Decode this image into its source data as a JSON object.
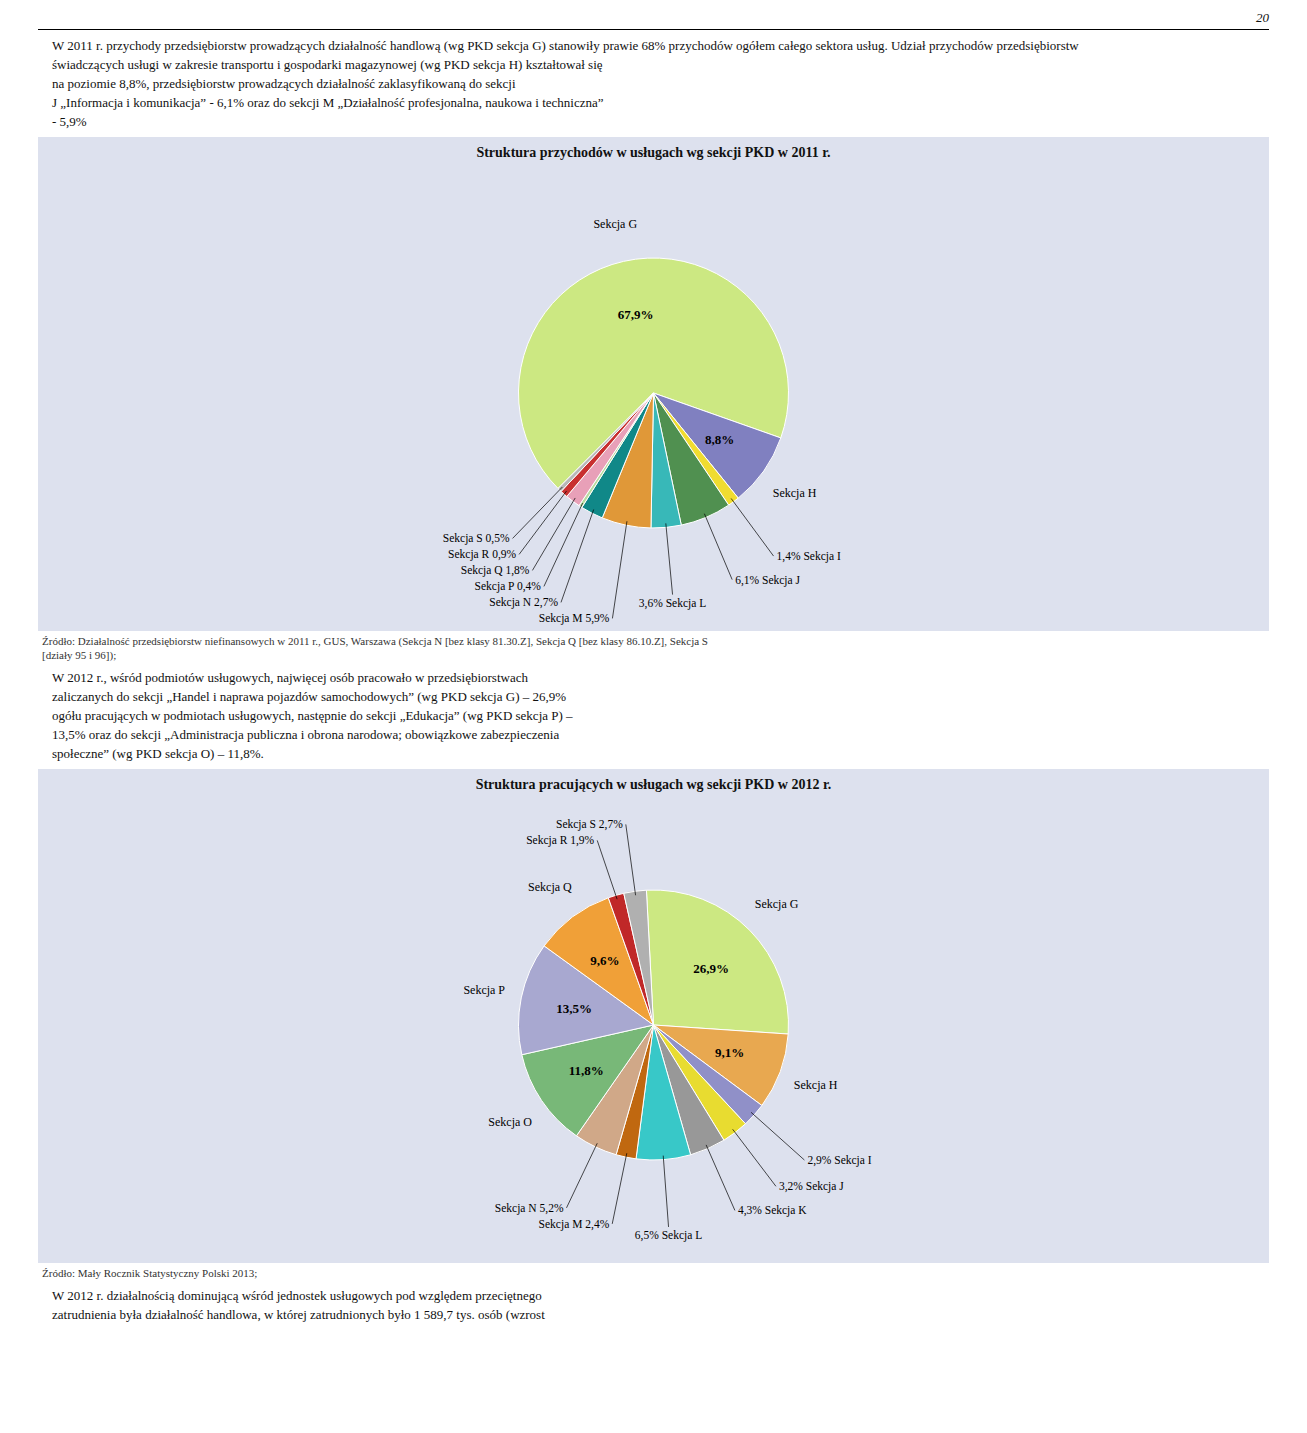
{
  "page_number": "20",
  "paragraphs": [
    [
      "W 2011 r. przychody przedsiębiorstw prowadzących działalność handlową (wg PKD sekcja G) stanowiły prawie 68% przychodów ogółem całego sektora usług. Udział przychodów przedsiębiorstw",
      "świadczących usługi w zakresie transportu i gospodarki magazynowej (wg PKD sekcja H) kształtował się",
      "na   poziomie   8,8%,   przedsiębiorstw   prowadzących   działalność   zaklasyfikowaną do sekcji",
      "J „Informacja i komunikacja” - 6,1% oraz do sekcji M „Działalność profesjonalna, naukowa i techniczna”",
      "- 5,9%"
    ],
    [
      "     W 2012 r., wśród podmiotów usługowych, najwięcej osób pracowało w przedsiębiorstwach",
      "zaliczanych do sekcji „Handel i naprawa pojazdów samochodowych” (wg PKD sekcja G) – 26,9%",
      "ogółu pracujących w podmiotach usługowych, następnie do sekcji „Edukacja” (wg PKD sekcja P) –",
      "13,5% oraz do sekcji „Administracja publiczna i obrona narodowa; obowiązkowe zabezpieczenia",
      "społeczne” (wg PKD sekcja O) – 11,8%."
    ],
    [
      "     W 2012 r. działalnością dominującą wśród jednostek usługowych pod względem przeciętnego",
      "zatrudnienia była działalność handlowa, w której zatrudnionych było 1 589,7 tys. osób (wzrost"
    ]
  ],
  "chart_data": [
    {
      "type": "pie",
      "title": "Struktura przychodów w usługach wg sekcji PKD w 2011 r.",
      "categories": [
        "Sekcja G",
        "Sekcja H",
        "Sekcja I",
        "Sekcja J",
        "Sekcja L",
        "Sekcja M",
        "Sekcja N",
        "Sekcja P",
        "Sekcja Q",
        "Sekcja R",
        "Sekcja S"
      ],
      "values": [
        67.9,
        8.8,
        1.4,
        6.1,
        3.6,
        5.9,
        2.7,
        0.4,
        1.8,
        0.9,
        0.5
      ],
      "value_labels": [
        "67,9%",
        "8,8%",
        "1,4%",
        "6,1%",
        "3,6%",
        "5,9%",
        "2,7%",
        "0,4%",
        "1,8%",
        "0,9%",
        "0,5%"
      ],
      "colors": [
        "#cce882",
        "#8080c0",
        "#f0dc30",
        "#509050",
        "#38b8b8",
        "#e09838",
        "#108888",
        "#b8dca0",
        "#e8a0b8",
        "#c83030",
        "#b8b8b8"
      ],
      "data_labels": true,
      "source": [
        "Źródło: Działalność przedsiębiorstw niefinansowych w 2011 r., GUS, Warszawa (Sekcja N [bez klasy 81.30.Z], Sekcja Q [bez klasy 86.10.Z], Sekcja S",
        "[działy 95 i 96]);"
      ]
    },
    {
      "type": "pie",
      "title": "Struktura pracujących w usługach wg sekcji PKD w 2012 r.",
      "categories": [
        "Sekcja G",
        "Sekcja H",
        "Sekcja I",
        "Sekcja J",
        "Sekcja K",
        "Sekcja L",
        "Sekcja M",
        "Sekcja N",
        "Sekcja O",
        "Sekcja P",
        "Sekcja Q",
        "Sekcja R",
        "Sekcja S"
      ],
      "values": [
        26.9,
        9.1,
        2.9,
        3.2,
        4.3,
        6.5,
        2.4,
        5.2,
        11.8,
        13.5,
        9.6,
        1.9,
        2.7
      ],
      "value_labels": [
        "26,9%",
        "9,1%",
        "2,9%",
        "3,2%",
        "4,3%",
        "6,5%",
        "2,4%",
        "5,2%",
        "11,8%",
        "13,5%",
        "9,6%",
        "1,9%",
        "2,7%"
      ],
      "colors": [
        "#cce882",
        "#e8a850",
        "#9090c8",
        "#e8dc30",
        "#989898",
        "#38c8c8",
        "#c06810",
        "#d0a888",
        "#78b878",
        "#a8a8d0",
        "#f0a038",
        "#c02828",
        "#b0b0b0"
      ],
      "data_labels": true,
      "source": [
        "Źródło: Mały Rocznik Statystyczny Polski 2013;"
      ]
    }
  ]
}
